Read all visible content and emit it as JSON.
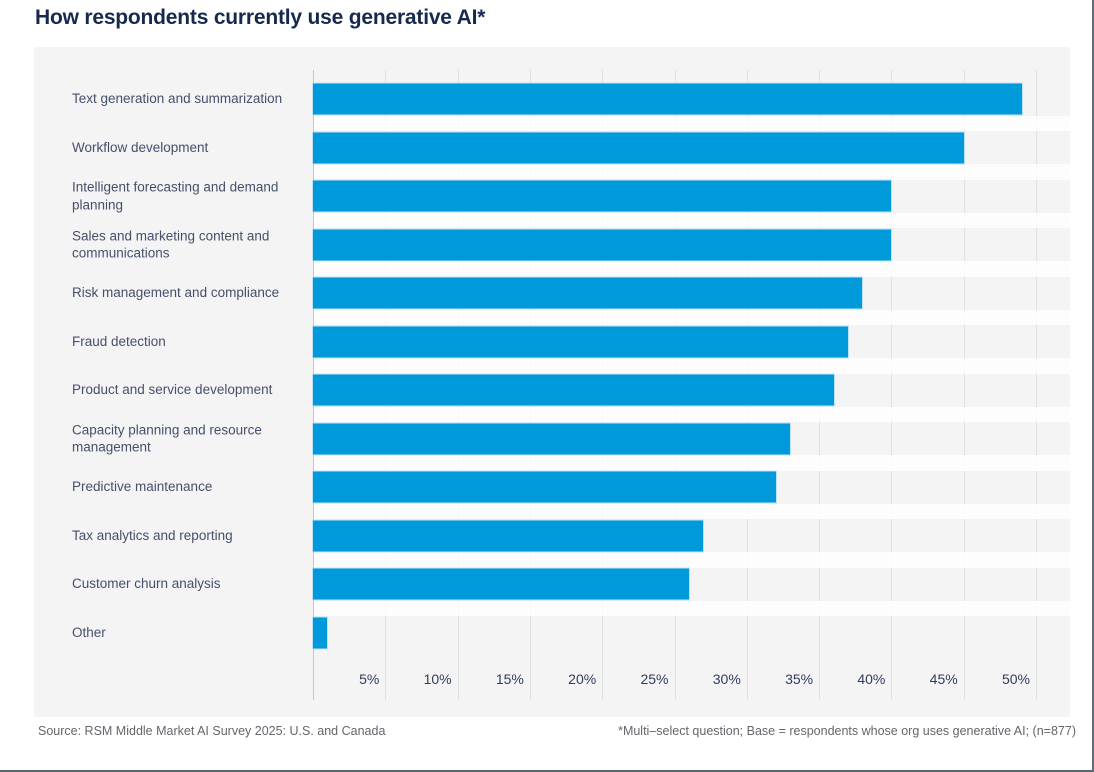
{
  "title": "How respondents currently use generative AI*",
  "chart_data": {
    "type": "bar",
    "orientation": "horizontal",
    "title": "How respondents currently use generative AI*",
    "categories": [
      "Text generation and summarization",
      "Workflow development",
      "Intelligent forecasting and demand planning",
      "Sales and marketing content and communications",
      "Risk management and compliance",
      "Fraud detection",
      "Product and service development",
      "Capacity planning and resource management",
      "Predictive maintenance",
      "Tax analytics and reporting",
      "Customer churn analysis",
      "Other"
    ],
    "values": [
      49,
      45,
      40,
      40,
      38,
      37,
      36,
      33,
      32,
      27,
      26,
      1
    ],
    "unit": "%",
    "xlabel": "",
    "ylabel": "",
    "xlim": [
      0,
      52.3
    ],
    "grid": true,
    "legend": "none",
    "bar_color": "#0099da"
  },
  "axis": {
    "ticks": [
      "5%",
      "10%",
      "15%",
      "20%",
      "25%",
      "30%",
      "35%",
      "40%",
      "45%",
      "50%"
    ],
    "tick_step_pct": 5
  },
  "footer": {
    "source": "Source: RSM Middle Market AI Survey 2025: U.S. and Canada",
    "note": "*Multi–select question; Base = respondents whose org uses generative AI; (n=877)"
  },
  "colors": {
    "bar": "#0099da",
    "title": "#16294e",
    "category_label": "#44506a",
    "tick_label": "#2f3d5c",
    "panel_background": "#f4f4f5",
    "gridline": "#dfe2e5",
    "footer_text": "#63666b",
    "page_border": "#5d6470"
  }
}
